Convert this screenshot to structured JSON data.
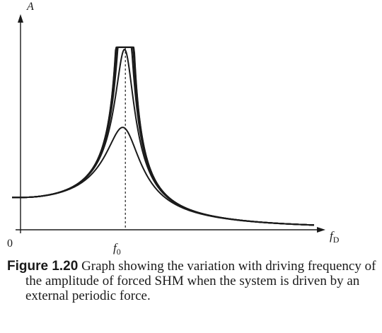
{
  "chart_data": {
    "type": "line",
    "title": "",
    "xlabel_main": "f",
    "xlabel_sub": "D",
    "ylabel": "A",
    "origin_label": "0",
    "tick_main": "f",
    "tick_sub": "0",
    "f0": 1.0,
    "xlim": [
      0,
      2.8
    ],
    "ylim": [
      0,
      5.2
    ],
    "series": [
      {
        "damping": 0.014
      },
      {
        "damping": 0.022
      },
      {
        "damping": 0.04
      },
      {
        "damping": 0.06
      },
      {
        "damping": 0.09
      },
      {
        "damping": 0.16
      }
    ]
  },
  "caption": {
    "label": "Figure 1.20",
    "text": " Graph showing the variation with driving frequency of the amplitude of forced SHM when the system is driven by an external periodic force."
  }
}
